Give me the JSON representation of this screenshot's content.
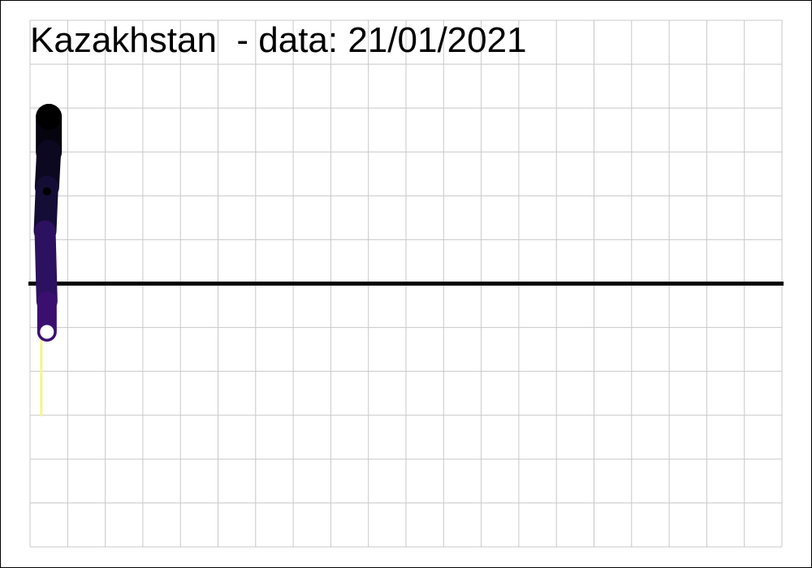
{
  "chart_data": {
    "type": "line",
    "title": "Kazakhstan  - data: 21/01/2021",
    "xlabel": "",
    "ylabel": "",
    "grid": true,
    "legend": "none",
    "x_divisions": 20,
    "y_divisions": 12,
    "y_at_zero_line": 6,
    "series": [
      {
        "values": [
          {
            "x": 0.5,
            "y": 9.8,
            "color": "#000000"
          },
          {
            "x": 0.5,
            "y": 9.0,
            "color": "#05040f"
          },
          {
            "x": 0.45,
            "y": 8.2,
            "color": "#0b0820"
          },
          {
            "x": 0.4,
            "y": 7.2,
            "color": "#140d35"
          },
          {
            "x": 0.45,
            "y": 5.6,
            "color": "#2c1160"
          },
          {
            "x": 0.45,
            "y": 4.9,
            "color": "#3b0f70"
          }
        ],
        "end_marker": "open-circle",
        "mid_marker": {
          "x": 0.45,
          "y": 8.1
        }
      },
      {
        "values": [
          {
            "x": 0.3,
            "y": 4.7
          },
          {
            "x": 0.3,
            "y": 3.0
          }
        ],
        "color": "#f7f38a"
      },
      {
        "values": [
          {
            "x": 0.2,
            "y": 9.0
          },
          {
            "x": 0.2,
            "y": 7.3
          }
        ],
        "color": "#e8561c"
      }
    ]
  }
}
